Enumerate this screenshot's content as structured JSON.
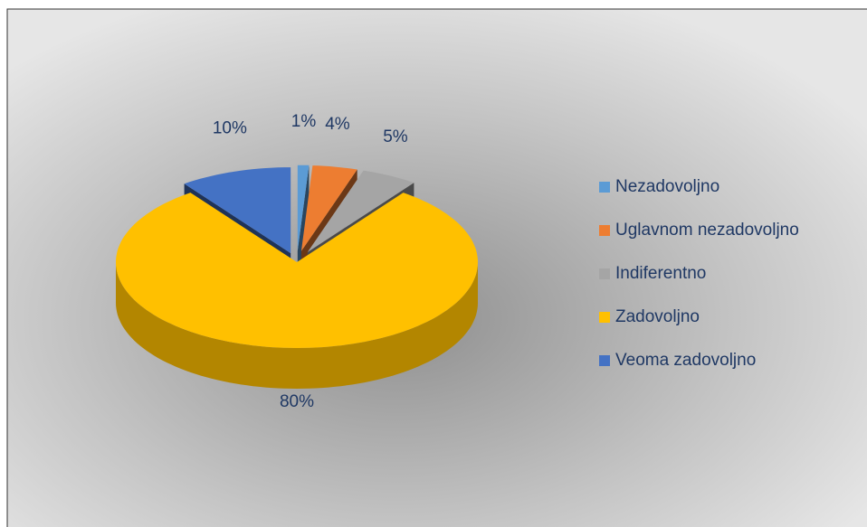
{
  "chart_data": {
    "type": "pie3d",
    "categories": [
      "Nezadovoljno",
      "Uglavnom nezadovoljno",
      "Indiferentno",
      "Zadovoljno",
      "Veoma zadovoljno"
    ],
    "values": [
      1,
      4,
      5,
      80,
      10
    ],
    "value_labels": [
      "1%",
      "4%",
      "5%",
      "80%",
      "10%"
    ],
    "colors": [
      "#5b9bd5",
      "#ed7d31",
      "#a5a5a5",
      "#ffc000",
      "#4472c4"
    ],
    "legend": "right"
  }
}
